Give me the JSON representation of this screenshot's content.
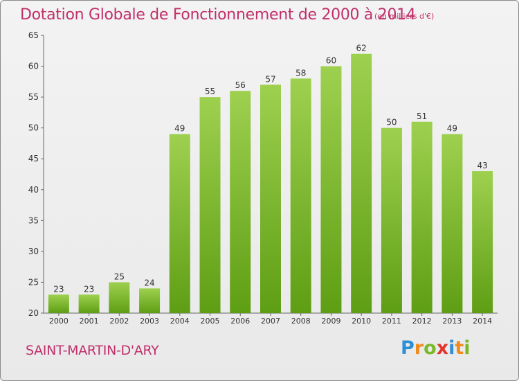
{
  "chart_data": {
    "type": "bar",
    "title": "Dotation Globale de Fonctionnement de 2000 à 2014",
    "subtitle": "(en milliers d'€)",
    "categories": [
      "2000",
      "2001",
      "2002",
      "2003",
      "2004",
      "2005",
      "2006",
      "2007",
      "2008",
      "2009",
      "2010",
      "2011",
      "2012",
      "2013",
      "2014"
    ],
    "values": [
      23,
      23,
      25,
      24,
      49,
      55,
      56,
      57,
      58,
      60,
      62,
      50,
      51,
      49,
      43
    ],
    "ylim": [
      20,
      65
    ],
    "yticks": [
      20,
      25,
      30,
      35,
      40,
      45,
      50,
      55,
      60,
      65
    ],
    "grid": false,
    "legend": "none",
    "colors": {
      "bar_top": "#9ed04f",
      "bar_bottom": "#5e9e14",
      "accent": "#c0306a"
    }
  },
  "footer": {
    "commune": "SAINT-MARTIN-D'ARY",
    "logo_letters": [
      {
        "ch": "P",
        "color": "#2e8fd6"
      },
      {
        "ch": "r",
        "color": "#f08a1c"
      },
      {
        "ch": "o",
        "color": "#7ab828"
      },
      {
        "ch": "x",
        "color": "#e2352b"
      },
      {
        "ch": "i",
        "color": "#2e8fd6"
      },
      {
        "ch": "t",
        "color": "#f08a1c"
      },
      {
        "ch": "i",
        "color": "#7ab828"
      }
    ]
  }
}
